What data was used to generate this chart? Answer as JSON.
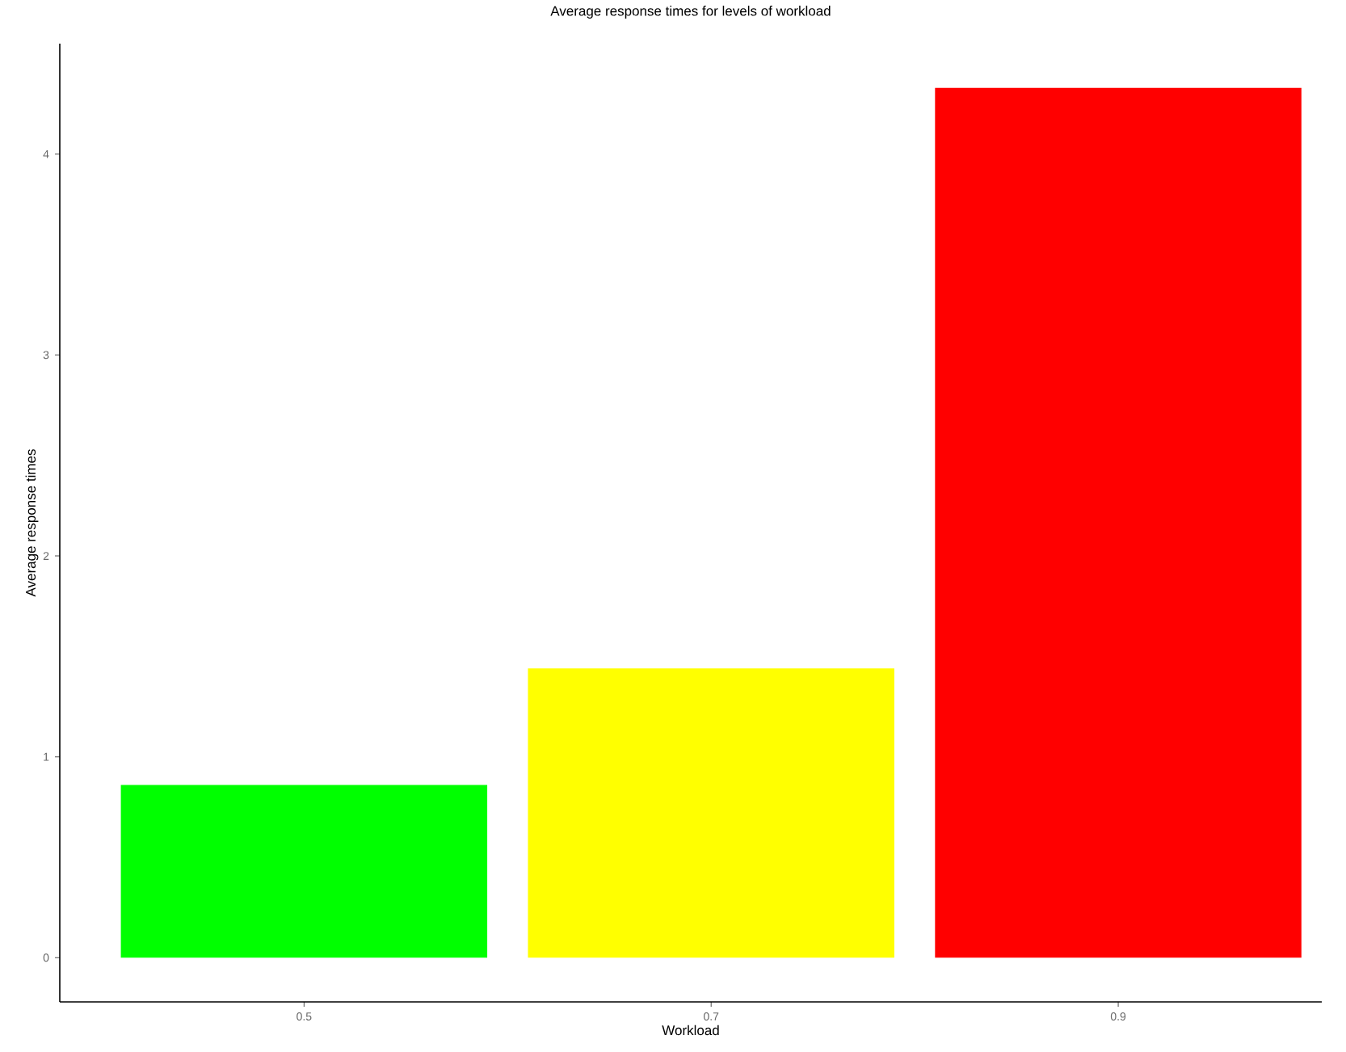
{
  "chart_data": {
    "type": "bar",
    "title": "Average response times for levels of workload",
    "xlabel": "Workload",
    "ylabel": "Average response times",
    "categories": [
      "0.5",
      "0.7",
      "0.9"
    ],
    "values": [
      0.86,
      1.44,
      4.33
    ],
    "colors": [
      "#00ff00",
      "#ffff00",
      "#ff0000"
    ],
    "ylim": [
      -0.22,
      4.55
    ],
    "yticks": [
      0,
      1,
      2,
      3,
      4
    ],
    "grid": false,
    "legend": false
  }
}
